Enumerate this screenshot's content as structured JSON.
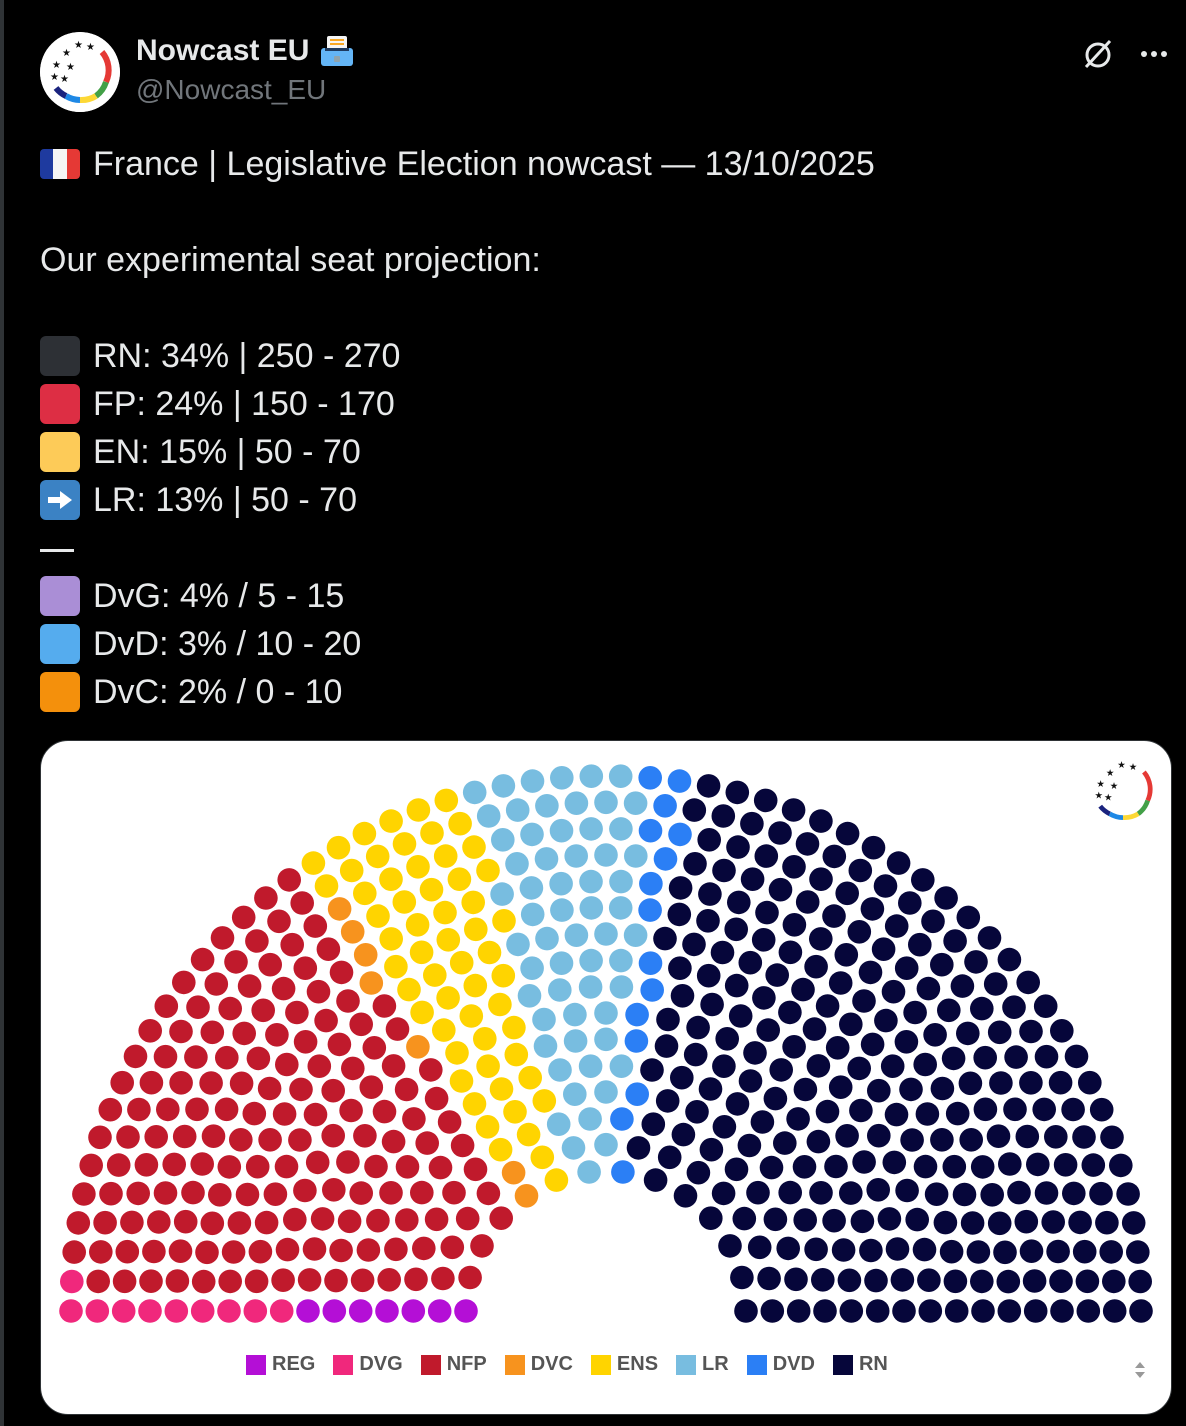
{
  "author": {
    "display_name": "Nowcast EU",
    "handle": "@Nowcast_EU"
  },
  "post": {
    "title": "France | Legislative Election nowcast — 13/10/2025",
    "subtitle": "Our experimental seat projection:",
    "main_rows": [
      {
        "text": "RN: 34% | 250 - 270",
        "color": "#2d3035"
      },
      {
        "text": "FP: 24% | 150 - 170",
        "color": "#dd2e44"
      },
      {
        "text": "EN: 15% | 50 - 70",
        "color": "#fdcb58"
      },
      {
        "text": "LR: 13% | 50 - 70",
        "icon": "right-arrow"
      }
    ],
    "separator": "—",
    "minor_rows": [
      {
        "text": "DvG: 4% / 5 - 15",
        "color": "#aa8ed6"
      },
      {
        "text": "DvD: 3% / 10 - 20",
        "color": "#55acee"
      },
      {
        "text": "DvC: 2% / 0 - 10",
        "color": "#f4900c"
      }
    ]
  },
  "chart_data": {
    "type": "hemicycle",
    "total_seats": 577,
    "series": [
      {
        "name": "REG",
        "seats": 7,
        "color": "#b40fd6"
      },
      {
        "name": "DVG",
        "seats": 10,
        "color": "#f0287c"
      },
      {
        "name": "NFP",
        "seats": 160,
        "color": "#c01a2c"
      },
      {
        "name": "DVC",
        "seats": 7,
        "color": "#f7931e"
      },
      {
        "name": "ENS",
        "seats": 58,
        "color": "#ffd400"
      },
      {
        "name": "LR",
        "seats": 60,
        "color": "#78bde0"
      },
      {
        "name": "DVD",
        "seats": 15,
        "color": "#2b7ff5"
      },
      {
        "name": "RN",
        "seats": 260,
        "color": "#06063a"
      }
    ]
  }
}
